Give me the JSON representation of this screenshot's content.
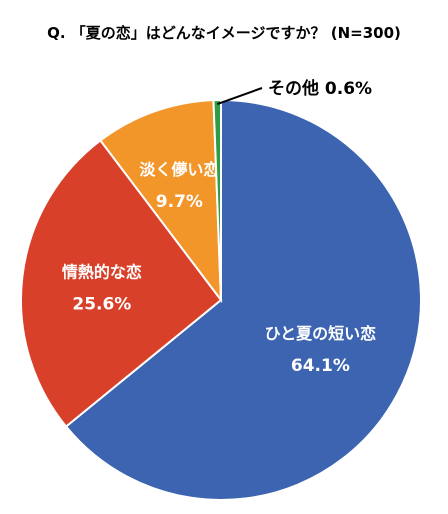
{
  "chart_data": {
    "type": "pie",
    "title": "Q. 「夏の恋」はどんなイメージですか？ (N=300)",
    "start_angle_deg": 0,
    "direction": "clockwise",
    "slices": [
      {
        "label": "ひと夏の短い恋",
        "value": 64.1,
        "value_label": "64.1%",
        "color": "#3c64b0",
        "text_color": "#ffffff"
      },
      {
        "label": "情熱的な恋",
        "value": 25.6,
        "value_label": "25.6%",
        "color": "#d9402a",
        "text_color": "#ffffff"
      },
      {
        "label": "淡く儚い恋",
        "value": 9.7,
        "value_label": "9.7%",
        "color": "#f2962a",
        "text_color": "#ffffff"
      },
      {
        "label": "その他",
        "value": 0.6,
        "value_label": "0.6%",
        "color": "#2e9e45",
        "text_color": "#000000",
        "outside_label": true
      }
    ]
  }
}
